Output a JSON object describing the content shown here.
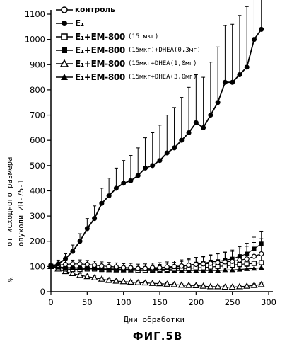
{
  "chart_data": {
    "type": "line",
    "xlabel": "Дни обработки",
    "ylabel_lines": [
      "%",
      "от исходного размера",
      "опухоли ZR-75-1"
    ],
    "caption": "ФИГ.5В",
    "xlim": [
      0,
      300
    ],
    "ylim": [
      0,
      1100
    ],
    "xticks": [
      0,
      50,
      100,
      150,
      200,
      250,
      300
    ],
    "yticks": [
      0,
      100,
      200,
      300,
      400,
      500,
      600,
      700,
      800,
      900,
      1000,
      1100
    ],
    "x": [
      0,
      10,
      20,
      30,
      40,
      50,
      60,
      70,
      80,
      90,
      100,
      110,
      120,
      130,
      140,
      150,
      160,
      170,
      180,
      190,
      200,
      210,
      220,
      230,
      240,
      250,
      260,
      270,
      280,
      290
    ],
    "series": [
      {
        "name": "контроль",
        "marker": "open-circle",
        "values": [
          100,
          105,
          108,
          110,
          110,
          108,
          105,
          102,
          100,
          98,
          95,
          95,
          92,
          92,
          95,
          95,
          98,
          100,
          102,
          105,
          108,
          110,
          112,
          115,
          118,
          120,
          125,
          130,
          140,
          150
        ],
        "errors": [
          10,
          12,
          14,
          15,
          16,
          16,
          16,
          16,
          16,
          16,
          16,
          17,
          17,
          18,
          18,
          20,
          20,
          22,
          24,
          26,
          28,
          30,
          32,
          35,
          38,
          40,
          45,
          50,
          55,
          60
        ]
      },
      {
        "name": "E₁",
        "marker": "filled-circle",
        "values": [
          100,
          110,
          130,
          160,
          200,
          250,
          290,
          350,
          380,
          410,
          430,
          440,
          460,
          490,
          500,
          520,
          550,
          570,
          600,
          630,
          670,
          650,
          700,
          750,
          830,
          830,
          860,
          890,
          1000,
          1040
        ],
        "errors": [
          10,
          15,
          20,
          25,
          30,
          40,
          50,
          60,
          70,
          80,
          90,
          100,
          110,
          120,
          130,
          140,
          150,
          160,
          170,
          180,
          190,
          200,
          210,
          220,
          225,
          230,
          235,
          240,
          245,
          250
        ]
      },
      {
        "name": "E₁+EM-800",
        "extra": "(15 мкг)",
        "marker": "open-square",
        "values": [
          100,
          95,
          90,
          88,
          88,
          90,
          90,
          88,
          88,
          88,
          88,
          88,
          85,
          85,
          88,
          88,
          88,
          90,
          92,
          92,
          95,
          95,
          98,
          100,
          102,
          105,
          108,
          110,
          112,
          115
        ],
        "errors": [
          10,
          10,
          10,
          12,
          12,
          12,
          12,
          12,
          12,
          14,
          14,
          14,
          14,
          14,
          15,
          15,
          15,
          16,
          16,
          18,
          18,
          20,
          20,
          22,
          22,
          24,
          24,
          26,
          28,
          30
        ]
      },
      {
        "name": "E₁+EM-800",
        "extra": "(15мкг)+DHEA(0,3мг)",
        "marker": "filled-square",
        "values": [
          100,
          98,
          95,
          93,
          93,
          92,
          92,
          90,
          90,
          90,
          88,
          90,
          90,
          90,
          90,
          92,
          95,
          98,
          100,
          105,
          110,
          112,
          118,
          120,
          125,
          130,
          140,
          150,
          170,
          190
        ],
        "errors": [
          10,
          10,
          10,
          12,
          12,
          12,
          12,
          12,
          13,
          13,
          14,
          14,
          15,
          15,
          16,
          16,
          18,
          18,
          20,
          22,
          24,
          26,
          28,
          30,
          32,
          35,
          38,
          42,
          46,
          50
        ]
      },
      {
        "name": "E₁+EM-800",
        "extra": "(15мкг+DHEA(1,0мг)",
        "marker": "open-triangle",
        "values": [
          100,
          90,
          80,
          72,
          65,
          60,
          55,
          50,
          45,
          42,
          40,
          38,
          36,
          35,
          33,
          32,
          30,
          28,
          26,
          25,
          24,
          22,
          20,
          20,
          18,
          18,
          20,
          22,
          25,
          28
        ],
        "errors": [
          8,
          8,
          8,
          8,
          7,
          7,
          7,
          6,
          6,
          6,
          6,
          6,
          6,
          6,
          5,
          5,
          5,
          5,
          5,
          5,
          5,
          5,
          5,
          5,
          5,
          5,
          5,
          5,
          6,
          6
        ]
      },
      {
        "name": "E₁+EM-800",
        "extra": "(15мкг+DHEA(3,0мг)",
        "marker": "filled-triangle",
        "values": [
          100,
          98,
          96,
          95,
          94,
          92,
          90,
          88,
          86,
          85,
          85,
          85,
          84,
          84,
          84,
          84,
          84,
          84,
          84,
          84,
          84,
          84,
          84,
          84,
          86,
          86,
          88,
          90,
          92,
          95
        ],
        "errors": [
          8,
          8,
          9,
          9,
          9,
          10,
          10,
          10,
          10,
          10,
          10,
          10,
          10,
          10,
          10,
          10,
          10,
          10,
          10,
          10,
          10,
          10,
          10,
          10,
          10,
          10,
          10,
          10,
          12,
          12
        ]
      }
    ],
    "legend_position": "top-left"
  }
}
